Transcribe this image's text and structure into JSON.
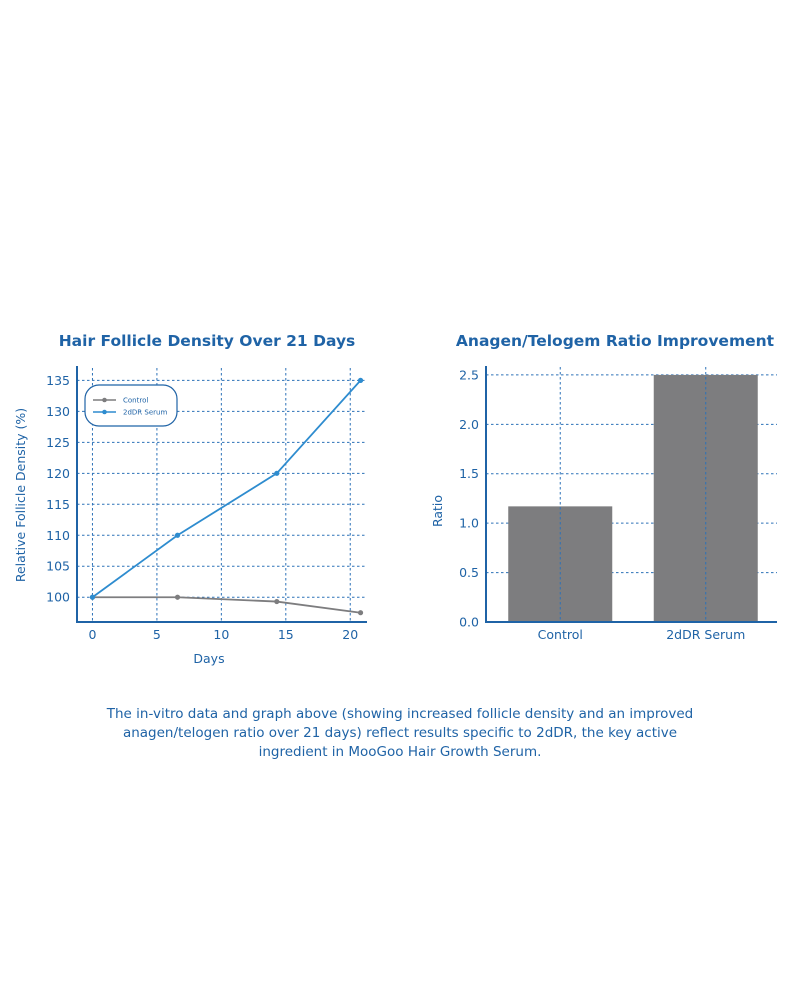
{
  "colors": {
    "text": "#1f63a6",
    "axis": "#1f63a6",
    "grid": "#2d72b8",
    "control": "#7d7d7f",
    "serum": "#2e8ccf",
    "bar": "#7d7d7f"
  },
  "chart_data": [
    {
      "type": "line",
      "title": "Hair Follicle Density Over 21 Days",
      "xlabel": "Days",
      "ylabel": "Relative Follicle Density (%)",
      "xlim": [
        -1.2,
        21.3
      ],
      "ylim": [
        96,
        137
      ],
      "x_ticks": [
        "0",
        "5",
        "10",
        "15",
        "20"
      ],
      "y_ticks": [
        "100",
        "105",
        "110",
        "115",
        "120",
        "125",
        "130",
        "135"
      ],
      "grid": true,
      "legend_position": "top-left",
      "series": [
        {
          "name": "Control",
          "x": [
            0,
            6.6,
            14.3,
            20.8
          ],
          "y": [
            100,
            100,
            99.3,
            97.5
          ]
        },
        {
          "name": "2dDR Serum",
          "x": [
            0,
            6.6,
            14.3,
            20.8
          ],
          "y": [
            100,
            110,
            120,
            135
          ]
        }
      ]
    },
    {
      "type": "bar",
      "title": "Anagen/Telogem Ratio Improvement",
      "xlabel": "",
      "ylabel": "Ratio",
      "categories": [
        "Control",
        "2dDR Serum"
      ],
      "values": [
        1.17,
        2.5
      ],
      "ylim": [
        0,
        2.58
      ],
      "y_ticks": [
        "0.0",
        "0.5",
        "1.0",
        "1.5",
        "2.0",
        "2.5"
      ],
      "grid": true
    }
  ],
  "caption": "The in-vitro data and graph above (showing increased follicle density and an improved anagen/telogen ratio over 21 days) reflect results specific to 2dDR, the key active ingredient in MooGoo Hair Growth Serum."
}
